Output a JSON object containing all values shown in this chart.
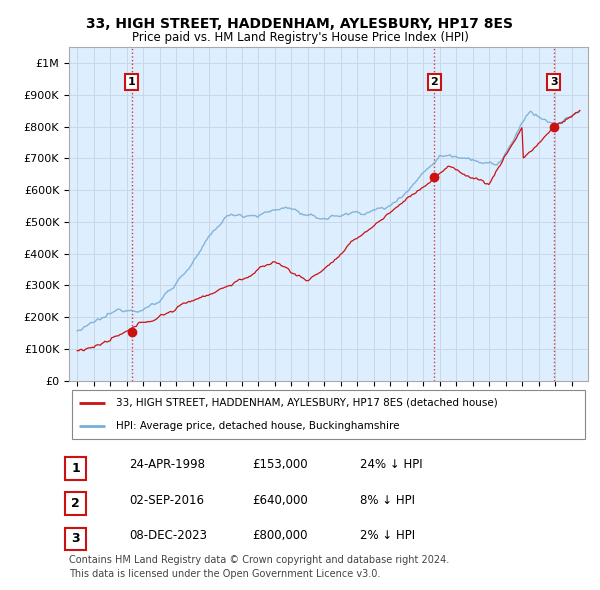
{
  "title1": "33, HIGH STREET, HADDENHAM, AYLESBURY, HP17 8ES",
  "title2": "Price paid vs. HM Land Registry's House Price Index (HPI)",
  "ylabel_ticks": [
    "£0",
    "£100K",
    "£200K",
    "£300K",
    "£400K",
    "£500K",
    "£600K",
    "£700K",
    "£800K",
    "£900K",
    "£1M"
  ],
  "ytick_values": [
    0,
    100000,
    200000,
    300000,
    400000,
    500000,
    600000,
    700000,
    800000,
    900000,
    1000000
  ],
  "xlim": [
    1994.5,
    2026.0
  ],
  "ylim": [
    0,
    1050000
  ],
  "hpi_color": "#7aaed4",
  "price_color": "#cc1111",
  "sale1_x": 1998.31,
  "sale1_y": 153000,
  "sale2_x": 2016.67,
  "sale2_y": 640000,
  "sale3_x": 2023.93,
  "sale3_y": 800000,
  "vline_color": "#cc1111",
  "grid_color": "#c8d8e8",
  "plot_bg_color": "#ddeeff",
  "legend_label1": "33, HIGH STREET, HADDENHAM, AYLESBURY, HP17 8ES (detached house)",
  "legend_label2": "HPI: Average price, detached house, Buckinghamshire",
  "table_data": [
    [
      "1",
      "24-APR-1998",
      "£153,000",
      "24% ↓ HPI"
    ],
    [
      "2",
      "02-SEP-2016",
      "£640,000",
      "8% ↓ HPI"
    ],
    [
      "3",
      "08-DEC-2023",
      "£800,000",
      "2% ↓ HPI"
    ]
  ],
  "footer1": "Contains HM Land Registry data © Crown copyright and database right 2024.",
  "footer2": "This data is licensed under the Open Government Licence v3.0.",
  "background_color": "#ffffff"
}
